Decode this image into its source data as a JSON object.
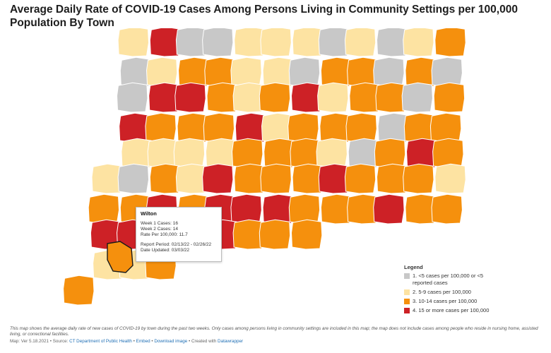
{
  "title": "Average Daily Rate of COVID-19 Cases Among Persons Living in Community Settings per 100,000 Population By Town",
  "colors": {
    "cat1": "#c8c8c8",
    "cat2": "#fde3a2",
    "cat3": "#f5900d",
    "cat4": "#cd2126",
    "outline": "#ffffff",
    "highlight": "#1a1a1a"
  },
  "tooltip": {
    "town": "Wilton",
    "week1": "Week 1 Cases: 16",
    "week2": "Week 2 Cases: 14",
    "rate": "Rate Per 100,000: 11.7",
    "period": "Report Period: 02/13/22 - 02/26/22",
    "updated": "Date Updated: 03/03/22"
  },
  "legend": {
    "title": "Legend",
    "items": [
      {
        "label": "1. <5 cases per 100,000 or <5 reported cases",
        "color": "#c8c8c8"
      },
      {
        "label": "2. 5-9 cases per 100,000",
        "color": "#fde3a2"
      },
      {
        "label": "3. 10-14 cases per 100,000",
        "color": "#f5900d"
      },
      {
        "label": "4. 15 or more cases per 100,000",
        "color": "#cd2126"
      }
    ]
  },
  "footnote": "This map shows the average daily rate of new cases of COVID-19 by town during the past two weeks. Only cases among persons living in community settings are included in this map; the map does not include cases among people who reside in nursing home, assisted living, or correctional facilities.",
  "credits": {
    "version": "Map: Ver 5.18.2021",
    "source_prefix": "Source:",
    "source": "CT Department of Public Health",
    "embed": "Embed",
    "download": "Download image",
    "created_prefix": "Created with",
    "created": "Datawrapper"
  },
  "towns": [
    {
      "c": 2
    },
    {
      "c": 4
    },
    {
      "c": 1
    },
    {
      "c": 1
    },
    {
      "c": 2
    },
    {
      "c": 2
    },
    {
      "c": 2
    },
    {
      "c": 1
    },
    {
      "c": 2
    },
    {
      "c": 1
    },
    {
      "c": 2
    },
    {
      "c": 3
    },
    {
      "c": 1
    },
    {
      "c": 2
    },
    {
      "c": 3
    },
    {
      "c": 3
    },
    {
      "c": 2
    },
    {
      "c": 2
    },
    {
      "c": 1
    },
    {
      "c": 3
    },
    {
      "c": 3
    },
    {
      "c": 1
    },
    {
      "c": 3
    },
    {
      "c": 1
    },
    {
      "c": 1
    },
    {
      "c": 4
    },
    {
      "c": 4
    },
    {
      "c": 3
    },
    {
      "c": 2
    },
    {
      "c": 3
    },
    {
      "c": 4
    },
    {
      "c": 2
    },
    {
      "c": 3
    },
    {
      "c": 3
    },
    {
      "c": 1
    },
    {
      "c": 3
    },
    {
      "c": 4
    },
    {
      "c": 3
    },
    {
      "c": 3
    },
    {
      "c": 3
    },
    {
      "c": 4
    },
    {
      "c": 2
    },
    {
      "c": 3
    },
    {
      "c": 3
    },
    {
      "c": 3
    },
    {
      "c": 1
    },
    {
      "c": 3
    },
    {
      "c": 3
    },
    {
      "c": 2
    },
    {
      "c": 2
    },
    {
      "c": 2
    },
    {
      "c": 2
    },
    {
      "c": 3
    },
    {
      "c": 3
    },
    {
      "c": 3
    },
    {
      "c": 2
    },
    {
      "c": 1
    },
    {
      "c": 3
    },
    {
      "c": 4
    },
    {
      "c": 3
    },
    {
      "c": 2
    },
    {
      "c": 1
    },
    {
      "c": 3
    },
    {
      "c": 2
    },
    {
      "c": 4
    },
    {
      "c": 3
    },
    {
      "c": 3
    },
    {
      "c": 3
    },
    {
      "c": 4
    },
    {
      "c": 3
    },
    {
      "c": 3
    },
    {
      "c": 3
    },
    {
      "c": 2
    },
    {
      "c": 3
    },
    {
      "c": 3
    },
    {
      "c": 4
    },
    {
      "c": 3
    },
    {
      "c": 4
    },
    {
      "c": 4
    },
    {
      "c": 4
    },
    {
      "c": 3
    },
    {
      "c": 3
    },
    {
      "c": 3
    },
    {
      "c": 4
    },
    {
      "c": 3
    },
    {
      "c": 3
    },
    {
      "c": 4
    },
    {
      "c": 4
    },
    {
      "c": 3
    },
    {
      "c": 4
    },
    {
      "c": 4
    },
    {
      "c": 3
    },
    {
      "c": 3
    },
    {
      "c": 3
    },
    {
      "c": 2
    },
    {
      "c": 2
    },
    {
      "c": 3
    },
    {
      "c": 3
    },
    {
      "c": 2
    },
    {
      "c": 3
    },
    {
      "c": 1
    },
    {
      "c": 2
    },
    {
      "c": 2
    }
  ]
}
